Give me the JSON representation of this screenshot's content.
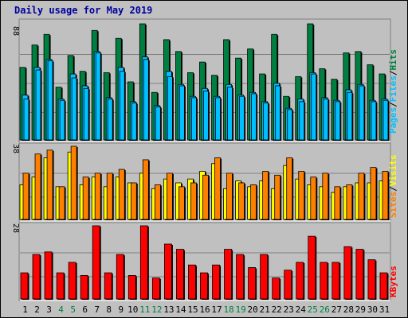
{
  "title": "Daily usage for May 2019",
  "colors": {
    "background": "#c0c0c0",
    "title": "#0000a0",
    "hits": "#008040",
    "files": "#00c0ff",
    "sites": "#ff8000",
    "visits": "#ffff00",
    "kbytes": "#ff0000",
    "weekend_label": "#008040",
    "weekday_label": "#000000"
  },
  "chart_data": [
    {
      "type": "bar",
      "panel": "hits-files-pages",
      "y_max_label": "88",
      "legend": {
        "pages": "Pages",
        "files": "Files",
        "hits": "Hits",
        "sep": "/"
      },
      "categories": [
        "1",
        "2",
        "3",
        "4",
        "5",
        "6",
        "7",
        "8",
        "9",
        "10",
        "11",
        "12",
        "13",
        "14",
        "15",
        "16",
        "17",
        "18",
        "19",
        "20",
        "21",
        "22",
        "23",
        "24",
        "25",
        "26",
        "27",
        "28",
        "29",
        "30",
        "31"
      ],
      "weekend": [
        4,
        5,
        11,
        12,
        18,
        19,
        25,
        26
      ],
      "series": [
        {
          "name": "Hits",
          "values": [
            55,
            72,
            80,
            40,
            64,
            52,
            83,
            51,
            77,
            44,
            88,
            36,
            76,
            67,
            51,
            59,
            49,
            76,
            62,
            69,
            50,
            80,
            33,
            48,
            88,
            54,
            46,
            66,
            67,
            57,
            50
          ]
        },
        {
          "name": "Files",
          "values": [
            34,
            55,
            61,
            31,
            50,
            41,
            67,
            32,
            55,
            29,
            63,
            26,
            52,
            42,
            33,
            39,
            33,
            42,
            34,
            36,
            29,
            43,
            24,
            31,
            51,
            32,
            30,
            38,
            42,
            30,
            31
          ]
        },
        {
          "name": "Pages",
          "values": [
            31,
            53,
            60,
            30,
            47,
            39,
            66,
            31,
            52,
            28,
            61,
            25,
            48,
            41,
            32,
            37,
            32,
            40,
            33,
            35,
            28,
            41,
            23,
            29,
            50,
            31,
            29,
            36,
            41,
            29,
            30
          ]
        }
      ]
    },
    {
      "type": "bar",
      "panel": "sites-visits",
      "y_max_label": "38",
      "legend": {
        "sites": "Sites",
        "visits": "Visits",
        "sep": "/"
      },
      "series": [
        {
          "name": "Visits",
          "values": [
            18,
            22,
            32,
            17,
            35,
            18,
            22,
            17,
            22,
            19,
            24,
            16,
            21,
            19,
            21,
            25,
            29,
            16,
            20,
            17,
            20,
            16,
            28,
            21,
            18,
            17,
            14,
            17,
            19,
            19,
            20
          ]
        },
        {
          "name": "Sites",
          "values": [
            24,
            34,
            36,
            17,
            38,
            22,
            24,
            24,
            26,
            19,
            31,
            18,
            24,
            17,
            19,
            23,
            32,
            24,
            19,
            18,
            25,
            23,
            32,
            25,
            22,
            24,
            17,
            18,
            24,
            27,
            25
          ]
        }
      ]
    },
    {
      "type": "bar",
      "panel": "kbytes",
      "y_max_label": "28",
      "legend": {
        "kbytes": "KBytes"
      },
      "series": [
        {
          "name": "KBytes",
          "values": [
            10,
            17,
            18,
            10,
            14,
            9,
            28,
            10,
            17,
            9,
            28,
            8,
            21,
            19,
            13,
            10,
            13,
            19,
            17,
            12,
            17,
            8,
            11,
            14,
            24,
            14,
            14,
            20,
            19,
            15,
            10
          ]
        }
      ]
    }
  ]
}
